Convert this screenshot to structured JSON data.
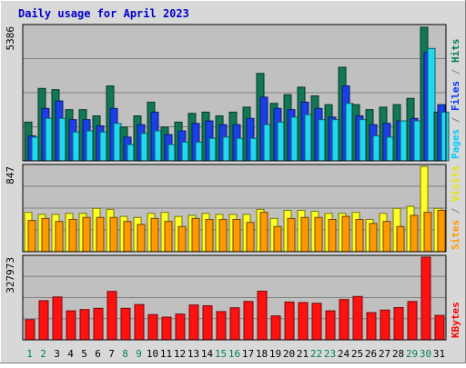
{
  "chart_data": {
    "type": "bar",
    "title": "Daily usage for April 2023",
    "categories": [
      "1",
      "2",
      "3",
      "4",
      "5",
      "6",
      "7",
      "8",
      "9",
      "10",
      "11",
      "12",
      "13",
      "14",
      "15",
      "16",
      "17",
      "18",
      "19",
      "20",
      "21",
      "22",
      "23",
      "24",
      "25",
      "26",
      "27",
      "28",
      "29",
      "30",
      "31"
    ],
    "weekend_days": [
      "1",
      "2",
      "8",
      "9",
      "15",
      "16",
      "22",
      "23",
      "29",
      "30"
    ],
    "panels": [
      {
        "id": "hits-files-pages",
        "ymax_label": "5386",
        "ymax": 5386,
        "grid": true,
        "side_labels": [
          {
            "text": "Pages",
            "color": "#00ccff"
          },
          {
            "text": " / ",
            "color": "#808080"
          },
          {
            "text": "Files",
            "color": "#0033ff"
          },
          {
            "text": " / ",
            "color": "#808080"
          },
          {
            "text": "Hits",
            "color": "#00805a"
          }
        ],
        "series": [
          {
            "name": "Hits",
            "color": "#117755",
            "values": [
              1550,
              2900,
              2850,
              2050,
              2050,
              1800,
              3000,
              1350,
              1800,
              2350,
              1350,
              1550,
              1900,
              1950,
              1800,
              1950,
              2150,
              3500,
              2300,
              2650,
              2950,
              2600,
              2250,
              3750,
              2250,
              2050,
              2150,
              2250,
              2500,
              5350,
              1950
            ]
          },
          {
            "name": "Files",
            "color": "#1a3fe6",
            "values": [
              1000,
              2100,
              2400,
              1650,
              1650,
              1400,
              2100,
              950,
              1450,
              1950,
              1050,
              1200,
              1500,
              1600,
              1450,
              1450,
              1700,
              2550,
              2100,
              2050,
              2350,
              2100,
              1750,
              3000,
              1800,
              1450,
              1500,
              1600,
              1700,
              4350,
              2250
            ]
          },
          {
            "name": "Pages",
            "color": "#22d8f0",
            "values": [
              950,
              1700,
              1700,
              1150,
              1200,
              1150,
              1500,
              650,
              1100,
              1200,
              650,
              750,
              750,
              900,
              950,
              900,
              900,
              1450,
              1550,
              1750,
              1850,
              1650,
              1650,
              2300,
              1650,
              1000,
              950,
              1600,
              1600,
              4500,
              1950
            ]
          }
        ]
      },
      {
        "id": "visits-sites",
        "ymax_label": "847",
        "ymax": 847,
        "grid": true,
        "side_labels": [
          {
            "text": "Sites",
            "color": "#ff9900"
          },
          {
            "text": " / ",
            "color": "#808080"
          },
          {
            "text": "Visits",
            "color": "#e6e600"
          }
        ],
        "series": [
          {
            "name": "Visits",
            "color": "#ffff22",
            "values": [
              390,
              370,
              370,
              380,
              380,
              430,
              420,
              350,
              340,
              380,
              390,
              350,
              360,
              380,
              370,
              370,
              370,
              420,
              330,
              410,
              410,
              400,
              380,
              380,
              390,
              320,
              380,
              430,
              450,
              845,
              430
            ]
          },
          {
            "name": "Sites",
            "color": "#ff9900",
            "values": [
              310,
              330,
              300,
              320,
              340,
              340,
              340,
              300,
              270,
              330,
              300,
              250,
              330,
              320,
              320,
              320,
              290,
              390,
              250,
              330,
              340,
              340,
              320,
              350,
              320,
              280,
              300,
              250,
              360,
              390,
              410
            ]
          }
        ]
      },
      {
        "id": "kbytes",
        "ymax_label": "327973",
        "ymax": 327973,
        "grid": true,
        "side_labels": [
          {
            "text": "KBytes",
            "color": "#ff0000"
          }
        ],
        "series": [
          {
            "name": "KBytes",
            "color": "#ff1111",
            "values": [
              80000,
              155000,
              170000,
              115000,
              120000,
              125000,
              192000,
              125000,
              140000,
              100000,
              90000,
              102000,
              138000,
              135000,
              112000,
              127000,
              152000,
              193000,
              95000,
              150000,
              148000,
              145000,
              115000,
              160000,
              172000,
              108000,
              118000,
              128000,
              152000,
              328000,
              97000
            ]
          }
        ]
      }
    ]
  }
}
